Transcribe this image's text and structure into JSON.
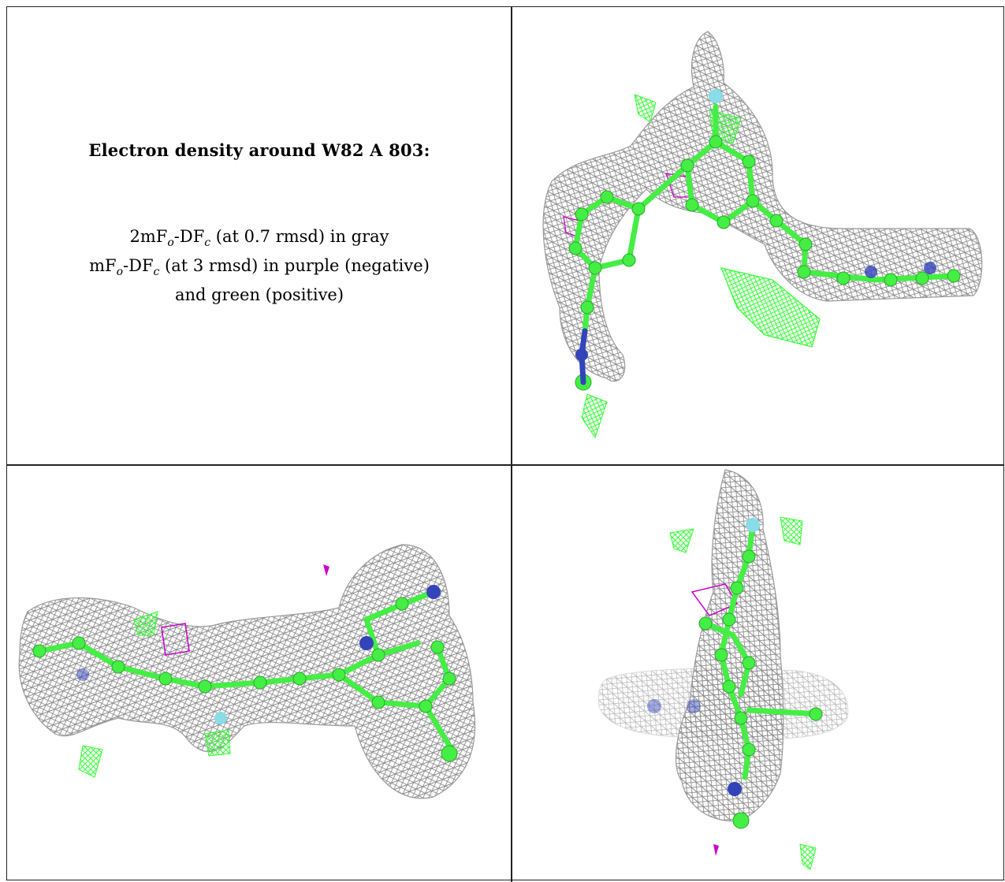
{
  "heading": "Electron density around W82 A 803:",
  "legend": {
    "line1": {
      "pre": "2mF",
      "s1": "o",
      "mid": "-DF",
      "s2": "c",
      "post": " (at 0.7 rmsd) in gray"
    },
    "line2": {
      "pre": "mF",
      "s1": "o",
      "mid": "-DF",
      "s2": "c",
      "post": " (at 3 rmsd) in purple (negative)"
    },
    "line3": "and green (positive)"
  },
  "colors": {
    "gray_mesh": "#8c8c8c",
    "positive_green": "#33ff33",
    "negative_purple": "#cc00cc",
    "nitrogen_blue": "#3344bb",
    "fluorine_cyan": "#88dde8",
    "carbon_green": "#44ee44"
  },
  "panels": [
    {
      "id": "view-top-right"
    },
    {
      "id": "view-bottom-left"
    },
    {
      "id": "view-bottom-right"
    }
  ]
}
